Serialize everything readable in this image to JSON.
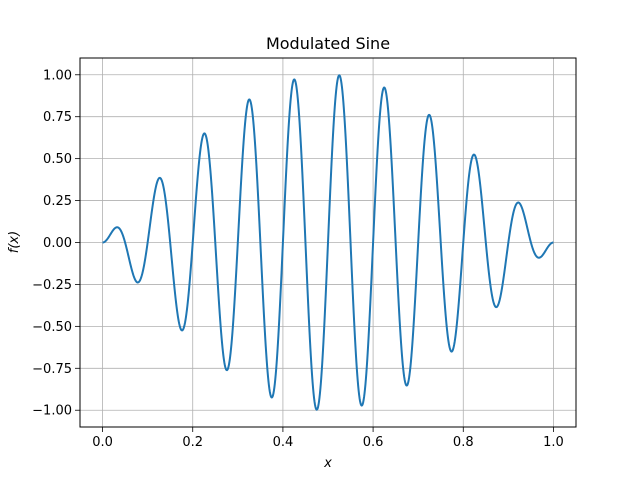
{
  "chart_data": {
    "type": "line",
    "title": "Modulated Sine",
    "xlabel": "x",
    "ylabel": "f(x)",
    "xlim": [
      -0.05,
      1.05
    ],
    "ylim": [
      -1.1,
      1.1
    ],
    "xticks": [
      0.0,
      0.2,
      0.4,
      0.6,
      0.8,
      1.0
    ],
    "xtick_labels": [
      "0.0",
      "0.2",
      "0.4",
      "0.6",
      "0.8",
      "1.0"
    ],
    "yticks": [
      1.0,
      0.75,
      0.5,
      0.25,
      0.0,
      -0.25,
      -0.5,
      -0.75,
      -1.0
    ],
    "ytick_labels": [
      "1.00",
      "0.75",
      "0.50",
      "0.25",
      "0.00",
      "−0.25",
      "−0.50",
      "−0.75",
      "−1.00"
    ],
    "grid": true,
    "series": [
      {
        "function": "sin(20*pi*x) * sin(pi*x)",
        "x_range": [
          0,
          1
        ],
        "color": "#1f77b4"
      }
    ]
  }
}
